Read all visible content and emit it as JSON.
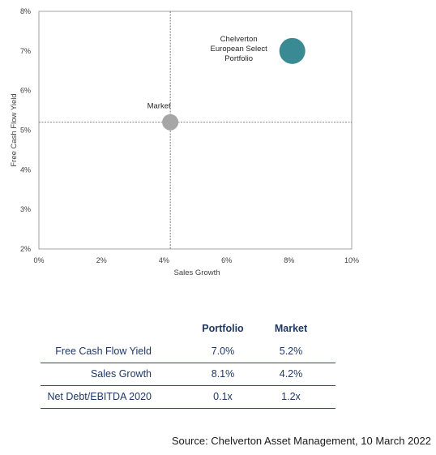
{
  "chart_data": {
    "type": "scatter",
    "xlabel": "Sales Growth",
    "ylabel": "Free Cash Flow Yield",
    "xlim": [
      0,
      10
    ],
    "ylim": [
      2,
      8
    ],
    "x_ticks": [
      "0%",
      "2%",
      "4%",
      "6%",
      "8%",
      "10%"
    ],
    "y_ticks": [
      "2%",
      "3%",
      "4%",
      "5%",
      "6%",
      "7%",
      "8%"
    ],
    "grid": false,
    "reference_lines": {
      "x": 4.2,
      "y": 5.2
    },
    "points": [
      {
        "label_lines": [
          "Market"
        ],
        "x": 4.2,
        "y": 5.2,
        "color": "#a6a6a6"
      },
      {
        "label_lines": [
          "Chelverton",
          "European Select",
          "Portfolio"
        ],
        "x": 8.1,
        "y": 7.0,
        "color": "#3a8a94"
      }
    ]
  },
  "metrics_table": {
    "columns": [
      "Portfolio",
      "Market"
    ],
    "rows": [
      {
        "label": "Free Cash Flow Yield",
        "portfolio": "7.0%",
        "market": "5.2%"
      },
      {
        "label": "Sales Growth",
        "portfolio": "8.1%",
        "market": "4.2%"
      },
      {
        "label": "Net Debt/EBITDA 2020",
        "portfolio": "0.1x",
        "market": "1.2x"
      }
    ]
  },
  "source": "Source: Chelverton Asset Management, 10 March 2022"
}
